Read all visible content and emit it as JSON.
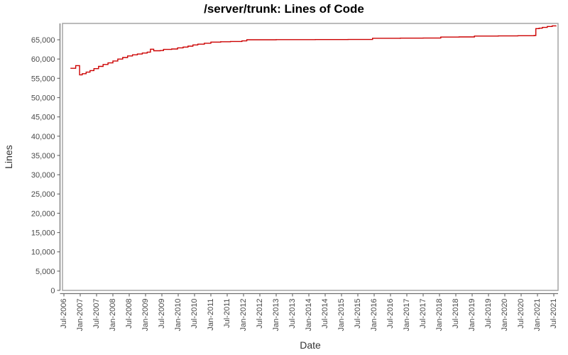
{
  "page": {
    "title": "/server/trunk: Lines of Code"
  },
  "chart_data": {
    "type": "line",
    "title": "/server/trunk: Lines of Code",
    "xlabel": "Date",
    "ylabel": "Lines",
    "legend_position": "none",
    "grid": false,
    "interpolation": "step-after",
    "series_name": "Lines of Code",
    "series_color": "#cc0000",
    "frame_color": "#9e9e9e",
    "axis_color": "#707070",
    "ylim": [
      0,
      69200
    ],
    "xlim_years": [
      2006.46,
      2021.64
    ],
    "y_ticks": [
      0,
      5000,
      10000,
      15000,
      20000,
      25000,
      30000,
      35000,
      40000,
      45000,
      50000,
      55000,
      60000,
      65000
    ],
    "x_tick_labels": [
      "Jul-2006",
      "Jan-2007",
      "Jul-2007",
      "Jan-2008",
      "Jul-2008",
      "Jan-2009",
      "Jul-2009",
      "Jan-2010",
      "Jul-2010",
      "Jan-2011",
      "Jul-2011",
      "Jan-2012",
      "Jul-2012",
      "Jan-2013",
      "Jul-2013",
      "Jan-2014",
      "Jul-2014",
      "Jan-2015",
      "Jul-2015",
      "Jan-2016",
      "Jul-2016",
      "Jan-2017",
      "Jul-2017",
      "Jan-2018",
      "Jul-2018",
      "Jan-2019",
      "Jul-2019",
      "Jan-2020",
      "Jul-2020",
      "Jan-2021",
      "Jul-2021"
    ],
    "points": [
      [
        2006.7,
        57600
      ],
      [
        2006.86,
        58300
      ],
      [
        2006.98,
        55900
      ],
      [
        2007.06,
        56200
      ],
      [
        2007.18,
        56600
      ],
      [
        2007.3,
        57000
      ],
      [
        2007.42,
        57500
      ],
      [
        2007.56,
        58100
      ],
      [
        2007.7,
        58600
      ],
      [
        2007.85,
        59000
      ],
      [
        2008.0,
        59500
      ],
      [
        2008.15,
        60000
      ],
      [
        2008.3,
        60400
      ],
      [
        2008.45,
        60800
      ],
      [
        2008.6,
        61100
      ],
      [
        2008.75,
        61300
      ],
      [
        2008.9,
        61550
      ],
      [
        2009.05,
        61800
      ],
      [
        2009.15,
        62550
      ],
      [
        2009.25,
        62150
      ],
      [
        2009.45,
        62200
      ],
      [
        2009.55,
        62500
      ],
      [
        2009.8,
        62600
      ],
      [
        2009.98,
        62900
      ],
      [
        2010.15,
        63100
      ],
      [
        2010.3,
        63350
      ],
      [
        2010.45,
        63650
      ],
      [
        2010.6,
        63850
      ],
      [
        2010.8,
        64100
      ],
      [
        2011.0,
        64400
      ],
      [
        2011.3,
        64480
      ],
      [
        2011.6,
        64550
      ],
      [
        2011.95,
        64700
      ],
      [
        2012.1,
        65000
      ],
      [
        2013.0,
        65030
      ],
      [
        2014.2,
        65060
      ],
      [
        2015.2,
        65080
      ],
      [
        2015.95,
        65380
      ],
      [
        2016.8,
        65420
      ],
      [
        2017.5,
        65450
      ],
      [
        2018.04,
        65700
      ],
      [
        2018.6,
        65730
      ],
      [
        2019.07,
        65950
      ],
      [
        2019.8,
        66000
      ],
      [
        2020.4,
        66050
      ],
      [
        2020.9,
        66100
      ],
      [
        2020.95,
        67900
      ],
      [
        2021.05,
        68000
      ],
      [
        2021.15,
        68200
      ],
      [
        2021.3,
        68450
      ],
      [
        2021.45,
        68600
      ],
      [
        2021.57,
        68650
      ]
    ]
  }
}
